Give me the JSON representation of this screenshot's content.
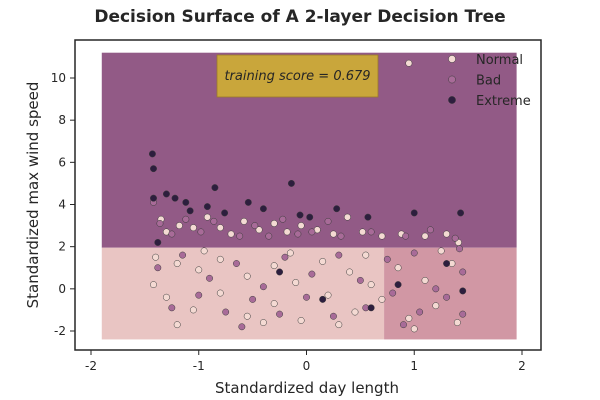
{
  "chart_data": {
    "type": "scatter",
    "title": "Decision Surface of A 2-layer Decision Tree",
    "xlabel": "Standardized day length",
    "ylabel": "Standardized max wind speed",
    "xlim": [
      -2.0,
      2.0
    ],
    "ylim": [
      -3.0,
      12.0
    ],
    "x_ticks": [
      "-2",
      "-1",
      "0",
      "1",
      "2"
    ],
    "y_ticks": [
      "-2",
      "0",
      "2",
      "4",
      "6",
      "8",
      "10"
    ],
    "grid": false,
    "legend_position": "top-right",
    "annotation": "training score = 0.679",
    "decision_regions": [
      {
        "class": "Extreme",
        "x_range": [
          -1.9,
          1.95
        ],
        "y_range": [
          1.95,
          11.2
        ],
        "color": "#925a86"
      },
      {
        "class": "Normal",
        "x_range": [
          -1.9,
          0.72
        ],
        "y_range": [
          -2.4,
          1.95
        ],
        "color": "#e9c5c3"
      },
      {
        "class": "Bad",
        "x_range": [
          0.72,
          1.95
        ],
        "y_range": [
          -2.4,
          1.95
        ],
        "color": "#d197a4"
      }
    ],
    "series": [
      {
        "name": "Normal",
        "color": "#f4dad3",
        "points": [
          [
            -1.35,
            3.3
          ],
          [
            -1.3,
            2.7
          ],
          [
            -1.18,
            3.0
          ],
          [
            -1.05,
            2.9
          ],
          [
            -0.92,
            3.4
          ],
          [
            -0.8,
            2.9
          ],
          [
            -0.7,
            2.6
          ],
          [
            -0.58,
            3.2
          ],
          [
            -0.44,
            2.8
          ],
          [
            -0.3,
            3.1
          ],
          [
            -0.18,
            2.7
          ],
          [
            -0.05,
            3.0
          ],
          [
            0.1,
            2.8
          ],
          [
            0.25,
            2.6
          ],
          [
            0.38,
            3.4
          ],
          [
            0.52,
            2.7
          ],
          [
            0.7,
            2.5
          ],
          [
            0.88,
            2.6
          ],
          [
            1.1,
            2.5
          ],
          [
            1.3,
            2.6
          ],
          [
            1.41,
            2.2
          ],
          [
            0.95,
            10.7
          ],
          [
            -1.4,
            1.5
          ],
          [
            -1.2,
            1.2
          ],
          [
            -1.0,
            0.9
          ],
          [
            -0.8,
            1.4
          ],
          [
            -0.55,
            0.6
          ],
          [
            -0.3,
            1.1
          ],
          [
            -0.1,
            0.3
          ],
          [
            0.15,
            1.3
          ],
          [
            0.4,
            0.8
          ],
          [
            0.6,
            0.2
          ],
          [
            0.85,
            1.0
          ],
          [
            1.1,
            0.4
          ],
          [
            1.35,
            1.2
          ],
          [
            -1.3,
            -0.4
          ],
          [
            -1.05,
            -1.0
          ],
          [
            -0.8,
            -0.2
          ],
          [
            -0.55,
            -1.3
          ],
          [
            -0.3,
            -0.7
          ],
          [
            -0.05,
            -1.5
          ],
          [
            0.2,
            -0.3
          ],
          [
            0.45,
            -1.1
          ],
          [
            0.7,
            -0.5
          ],
          [
            0.95,
            -1.4
          ],
          [
            1.2,
            -0.8
          ],
          [
            1.4,
            -1.6
          ],
          [
            -1.2,
            -1.7
          ],
          [
            -0.4,
            -1.6
          ],
          [
            0.3,
            -1.7
          ],
          [
            1.0,
            -1.9
          ],
          [
            -0.95,
            1.8
          ],
          [
            -0.15,
            1.7
          ],
          [
            0.55,
            1.6
          ],
          [
            1.25,
            1.8
          ],
          [
            -1.42,
            0.2
          ]
        ]
      },
      {
        "name": "Bad",
        "color": "#a86b98",
        "points": [
          [
            -1.42,
            4.1
          ],
          [
            -1.36,
            3.1
          ],
          [
            -1.25,
            2.6
          ],
          [
            -1.12,
            3.3
          ],
          [
            -0.98,
            2.7
          ],
          [
            -0.86,
            3.2
          ],
          [
            -0.62,
            2.5
          ],
          [
            -0.48,
            3.0
          ],
          [
            -0.35,
            2.5
          ],
          [
            -0.22,
            3.3
          ],
          [
            -0.08,
            2.6
          ],
          [
            0.05,
            2.7
          ],
          [
            0.2,
            3.2
          ],
          [
            0.32,
            2.5
          ],
          [
            0.6,
            2.7
          ],
          [
            0.92,
            2.5
          ],
          [
            1.15,
            2.8
          ],
          [
            1.38,
            2.4
          ],
          [
            -1.38,
            1.0
          ],
          [
            -1.15,
            1.6
          ],
          [
            -0.9,
            0.5
          ],
          [
            -0.65,
            1.2
          ],
          [
            -0.4,
            0.1
          ],
          [
            -0.2,
            1.5
          ],
          [
            0.05,
            0.7
          ],
          [
            0.3,
            1.6
          ],
          [
            0.5,
            0.4
          ],
          [
            0.75,
            1.4
          ],
          [
            1.0,
            1.7
          ],
          [
            1.2,
            0.0
          ],
          [
            1.45,
            0.8
          ],
          [
            -1.25,
            -0.9
          ],
          [
            -1.0,
            -0.3
          ],
          [
            -0.75,
            -1.1
          ],
          [
            -0.5,
            -0.5
          ],
          [
            -0.25,
            -1.2
          ],
          [
            0.0,
            -0.4
          ],
          [
            0.25,
            -1.3
          ],
          [
            0.55,
            -0.9
          ],
          [
            0.8,
            -0.2
          ],
          [
            1.05,
            -1.1
          ],
          [
            1.3,
            -0.4
          ],
          [
            1.45,
            -1.2
          ],
          [
            1.42,
            1.9
          ],
          [
            0.9,
            -1.7
          ],
          [
            -0.6,
            -1.8
          ]
        ]
      },
      {
        "name": "Extreme",
        "color": "#2d1e3e",
        "points": [
          [
            -1.43,
            6.4
          ],
          [
            -1.42,
            5.7
          ],
          [
            -1.42,
            4.3
          ],
          [
            -1.3,
            4.5
          ],
          [
            -1.22,
            4.3
          ],
          [
            -1.12,
            4.1
          ],
          [
            -1.08,
            3.7
          ],
          [
            -0.92,
            3.9
          ],
          [
            -0.85,
            4.8
          ],
          [
            -0.76,
            3.6
          ],
          [
            -0.54,
            4.1
          ],
          [
            -0.4,
            3.8
          ],
          [
            -0.14,
            5.0
          ],
          [
            -0.06,
            3.5
          ],
          [
            0.03,
            3.4
          ],
          [
            0.28,
            3.8
          ],
          [
            0.57,
            3.4
          ],
          [
            1.0,
            3.6
          ],
          [
            1.43,
            3.6
          ],
          [
            1.3,
            1.2
          ],
          [
            0.6,
            -0.9
          ],
          [
            -0.25,
            0.8
          ],
          [
            0.15,
            -0.5
          ],
          [
            1.45,
            -0.1
          ],
          [
            -1.38,
            2.2
          ],
          [
            0.85,
            0.2
          ]
        ]
      }
    ]
  }
}
